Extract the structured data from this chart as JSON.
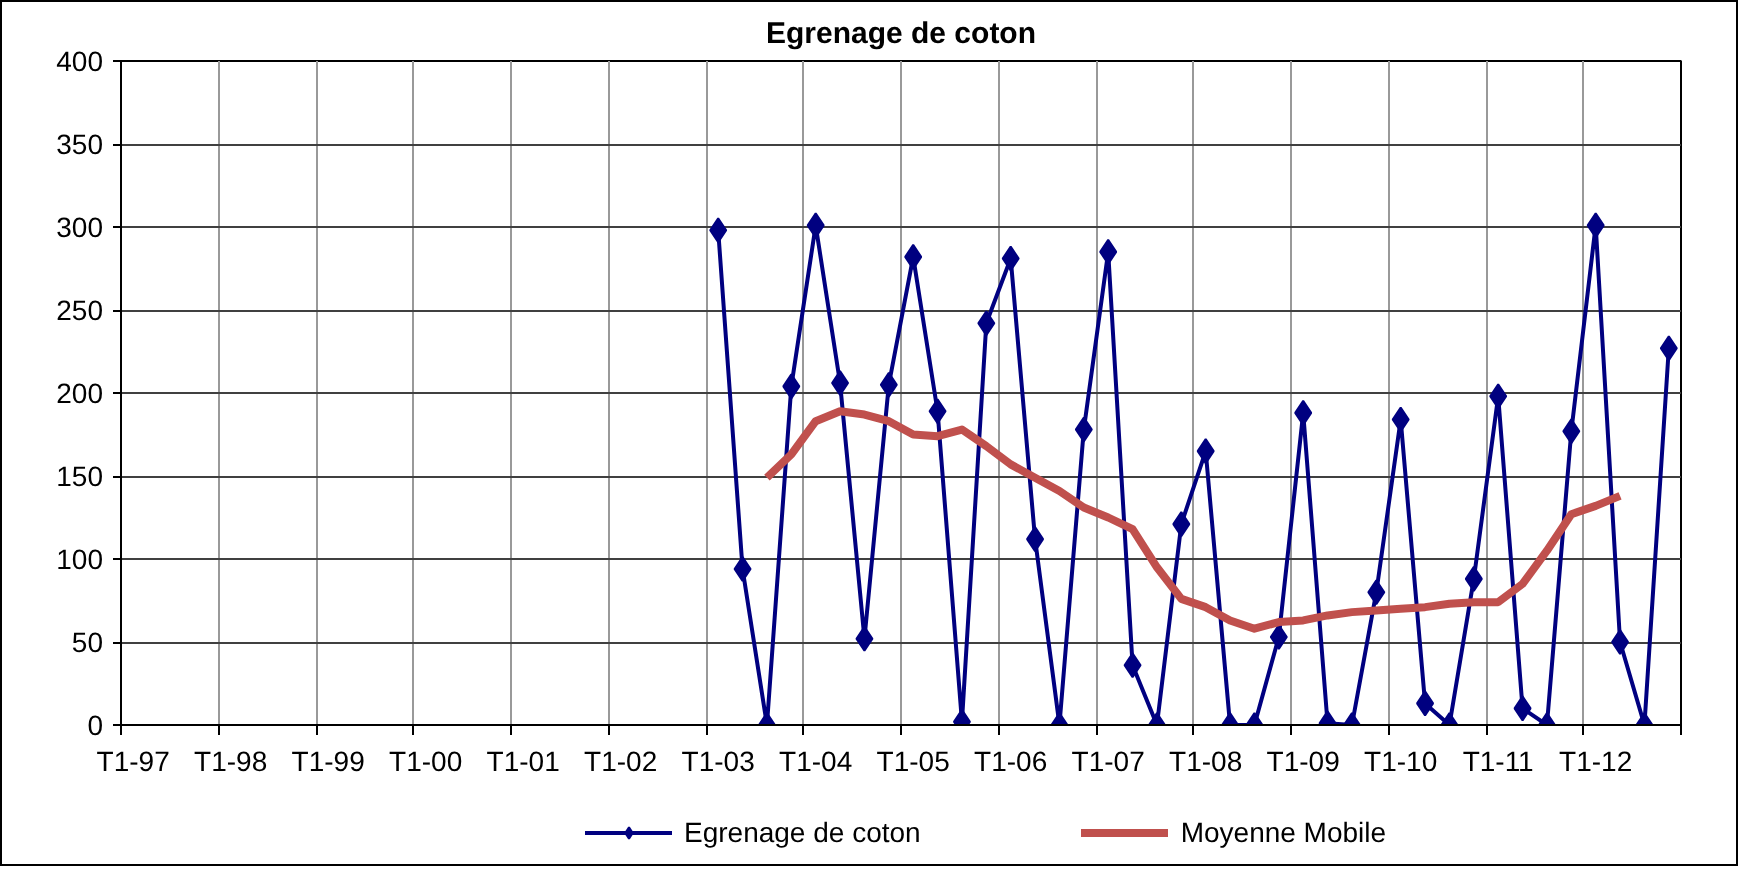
{
  "chart_data": {
    "type": "line",
    "title": "Egrenage de coton",
    "categories": [
      "T1-97",
      null,
      null,
      null,
      "T1-98",
      null,
      null,
      null,
      "T1-99",
      null,
      null,
      null,
      "T1-00",
      null,
      null,
      null,
      "T1-01",
      null,
      null,
      null,
      "T1-02",
      null,
      null,
      null,
      "T1-03",
      null,
      null,
      null,
      "T1-04",
      null,
      null,
      null,
      "T1-05",
      null,
      null,
      null,
      "T1-06",
      null,
      null,
      null,
      "T1-07",
      null,
      null,
      null,
      "T1-08",
      null,
      null,
      null,
      "T1-09",
      null,
      null,
      null,
      "T1-10",
      null,
      null,
      null,
      "T1-11",
      null,
      null,
      null,
      "T1-12",
      null,
      null,
      null
    ],
    "series": [
      {
        "name": "Egrenage de coton",
        "color": "#000080",
        "marker": "diamond",
        "values": [
          null,
          null,
          null,
          null,
          null,
          null,
          null,
          null,
          null,
          null,
          null,
          null,
          null,
          null,
          null,
          null,
          null,
          null,
          null,
          null,
          null,
          null,
          null,
          null,
          298,
          94,
          0,
          204,
          301,
          206,
          52,
          205,
          282,
          189,
          2,
          242,
          281,
          112,
          0,
          178,
          285,
          36,
          0,
          121,
          165,
          0,
          0,
          53,
          188,
          1,
          0,
          80,
          184,
          13,
          0,
          88,
          198,
          10,
          0,
          177,
          301,
          50,
          0,
          227
        ]
      },
      {
        "name": "Moyenne Mobile",
        "color": "#c0504d",
        "marker": "none",
        "values": [
          null,
          null,
          null,
          null,
          null,
          null,
          null,
          null,
          null,
          null,
          null,
          null,
          null,
          null,
          null,
          null,
          null,
          null,
          null,
          null,
          null,
          null,
          null,
          null,
          null,
          null,
          149,
          163,
          183,
          189,
          187,
          183,
          175,
          174,
          178,
          168,
          157,
          149,
          141,
          131,
          125,
          118,
          95,
          76,
          71,
          63,
          58,
          62,
          63,
          66,
          68,
          69,
          70,
          71,
          73,
          74,
          74,
          85,
          105,
          127,
          132,
          138,
          null,
          null
        ]
      }
    ],
    "ylim": [
      0,
      400
    ],
    "yticks": [
      0,
      50,
      100,
      150,
      200,
      250,
      300,
      350,
      400
    ],
    "grid": true,
    "legend": "bottom",
    "line_style": "solid"
  }
}
